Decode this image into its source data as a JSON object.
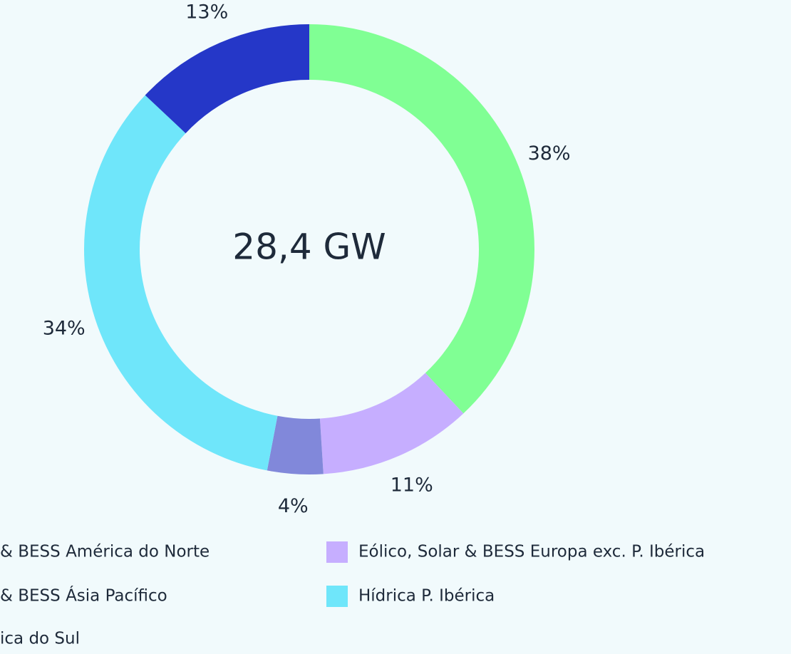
{
  "chart_data": {
    "type": "donut",
    "center_label": "28,4 GW",
    "categories": [
      "& BESS América do Norte",
      "Eólico, Solar & BESS Europa exc. P. Ibérica",
      "& BESS Ásia Pacífico",
      "Hídrica P. Ibérica",
      "ica do Sul"
    ],
    "values": [
      38,
      11,
      4,
      34,
      13
    ],
    "value_labels": [
      "38%",
      "11%",
      "4%",
      "34%",
      "13%"
    ],
    "colors": [
      "#80ff94",
      "#c6aeff",
      "#8188da",
      "#6fe6fa",
      "#2537c8"
    ]
  }
}
